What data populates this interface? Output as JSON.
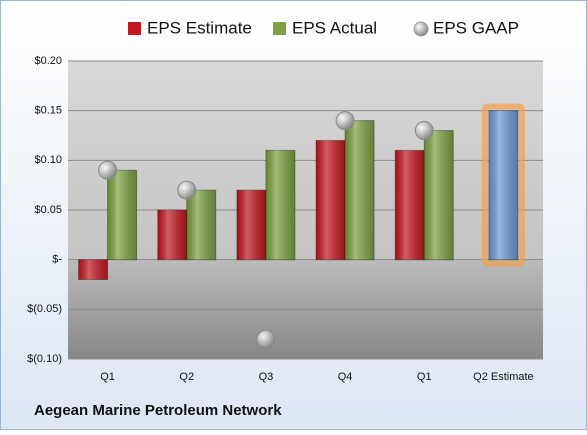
{
  "chart_data": {
    "type": "bar",
    "categories": [
      "Q1",
      "Q2",
      "Q3",
      "Q4",
      "Q1",
      "Q2 Estimate"
    ],
    "series": [
      {
        "name": "EPS Estimate",
        "color": "#c3181f",
        "colors": [
          "#c3181f",
          "#c3181f",
          "#c3181f",
          "#c3181f",
          "#c3181f",
          "#6b9bd6"
        ],
        "values": [
          -0.02,
          0.05,
          0.07,
          0.12,
          0.11,
          0.15
        ]
      },
      {
        "name": "EPS Actual",
        "color": "#7ea242",
        "values": [
          0.09,
          0.07,
          0.11,
          0.14,
          0.13,
          null
        ]
      },
      {
        "name": "EPS GAAP",
        "color": "#b8b8b8",
        "marker": "circle",
        "values": [
          0.09,
          0.07,
          -0.08,
          0.14,
          0.13,
          null
        ]
      }
    ],
    "ylim": [
      -0.1,
      0.2
    ],
    "yticks": [
      {
        "value": -0.1,
        "label": "$(0.10)"
      },
      {
        "value": -0.05,
        "label": "$(0.05)"
      },
      {
        "value": 0,
        "label": "$-"
      },
      {
        "value": 0.05,
        "label": "$0.05"
      },
      {
        "value": 0.1,
        "label": "$0.10"
      },
      {
        "value": 0.15,
        "label": "$0.15"
      },
      {
        "value": 0.2,
        "label": "$0.20"
      }
    ],
    "grid": true,
    "legend": "top",
    "footer": "Aegean Marine Petroleum Network"
  }
}
